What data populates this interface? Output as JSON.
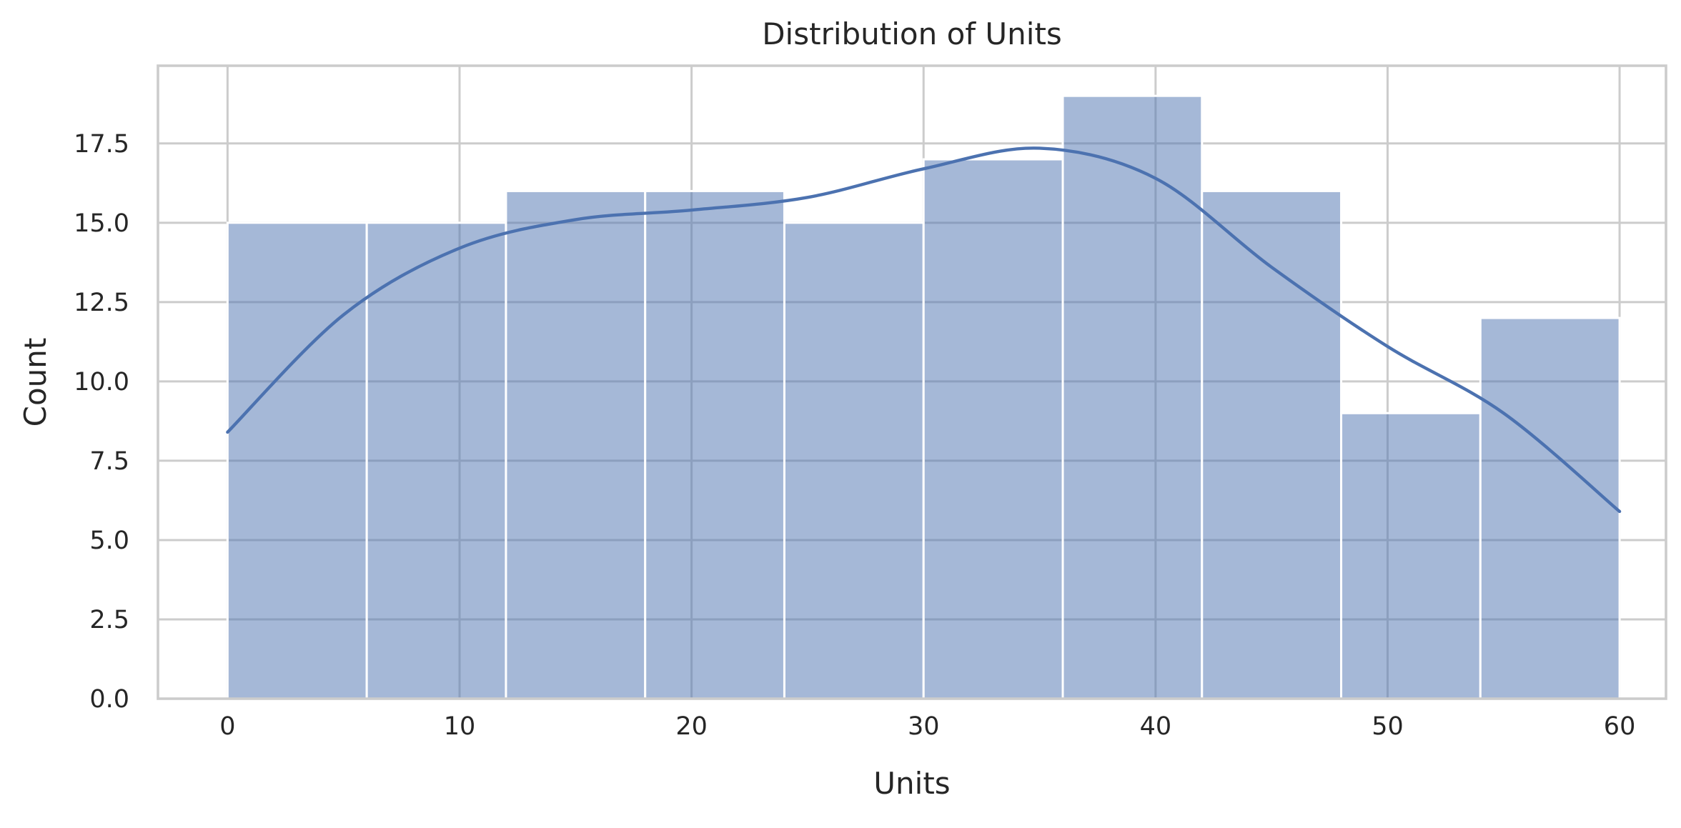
{
  "chart_data": {
    "type": "bar",
    "title": "Distribution of Units",
    "xlabel": "Units",
    "ylabel": "Count",
    "xlim": [
      -3,
      62
    ],
    "ylim": [
      0,
      19.95
    ],
    "xticks": [
      0,
      10,
      20,
      30,
      40,
      50,
      60
    ],
    "yticks": [
      0.0,
      2.5,
      5.0,
      7.5,
      10.0,
      12.5,
      15.0,
      17.5
    ],
    "grid": true,
    "bins": [
      {
        "x0": 0,
        "x1": 6,
        "count": 15
      },
      {
        "x0": 6,
        "x1": 12,
        "count": 15
      },
      {
        "x0": 12,
        "x1": 18,
        "count": 16
      },
      {
        "x0": 18,
        "x1": 24,
        "count": 16
      },
      {
        "x0": 24,
        "x1": 30,
        "count": 15
      },
      {
        "x0": 30,
        "x1": 36,
        "count": 17
      },
      {
        "x0": 36,
        "x1": 42,
        "count": 19
      },
      {
        "x0": 42,
        "x1": 48,
        "count": 16
      },
      {
        "x0": 48,
        "x1": 54,
        "count": 9
      },
      {
        "x0": 54,
        "x1": 60,
        "count": 12
      }
    ],
    "kde": {
      "x": [
        0,
        5,
        10,
        15,
        20,
        25,
        30,
        35,
        40,
        45,
        50,
        55,
        60
      ],
      "y": [
        8.4,
        12.1,
        14.2,
        15.1,
        15.4,
        15.8,
        16.7,
        17.35,
        16.4,
        13.6,
        11.1,
        9.0,
        5.9
      ]
    },
    "colors": {
      "bar": "#4c72b0",
      "kde": "#4c72b0",
      "grid": "#cccccc",
      "text": "#262626"
    }
  }
}
